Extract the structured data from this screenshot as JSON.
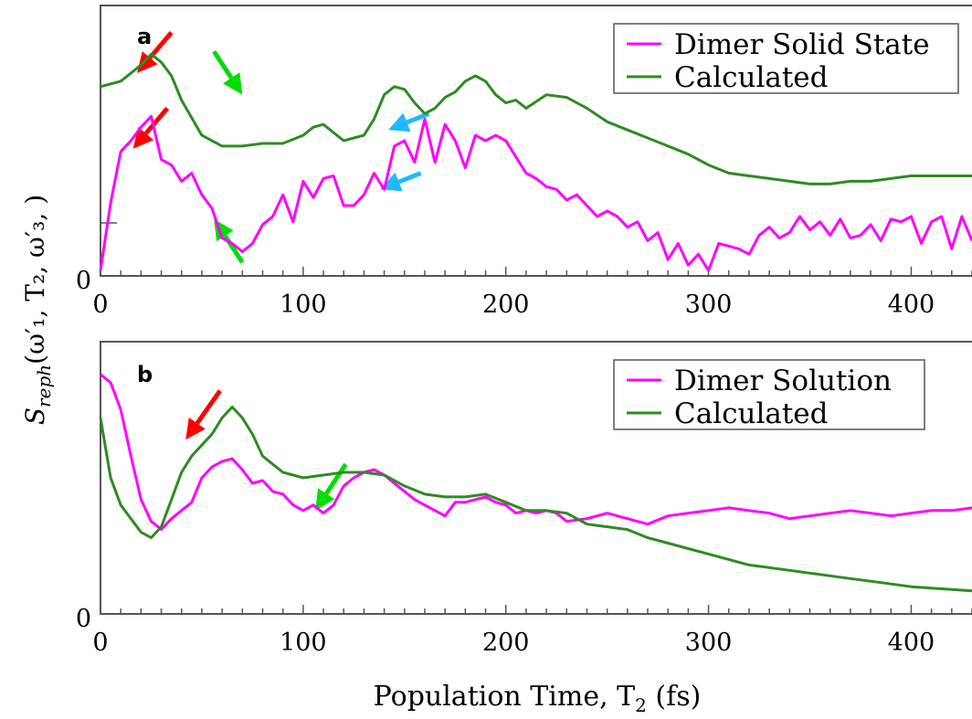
{
  "chart_data": [
    {
      "type": "line",
      "panel_label": "a",
      "xlabel": "Population Time, T",
      "xlabel_sub": "2",
      "xlabel_suffix": " (fs)",
      "ylabel": "S",
      "ylabel_sub": "reph",
      "ylabel_args": "(ω′₁, T₂, ω′₃, )",
      "xlim": [
        0,
        430
      ],
      "ylim": [
        0,
        1
      ],
      "xticks": [
        0,
        100,
        200,
        300,
        400
      ],
      "ytick_labels": [
        "0"
      ],
      "legend_position": "top-right",
      "series": [
        {
          "name": "Dimer Solid State",
          "color": "#ff00ff",
          "x": [
            0,
            5,
            10,
            15,
            20,
            25,
            30,
            35,
            40,
            45,
            50,
            55,
            60,
            65,
            70,
            75,
            80,
            85,
            90,
            95,
            100,
            105,
            110,
            115,
            120,
            125,
            130,
            135,
            140,
            145,
            150,
            155,
            160,
            165,
            170,
            175,
            180,
            185,
            190,
            195,
            200,
            205,
            210,
            215,
            220,
            225,
            230,
            235,
            240,
            245,
            250,
            255,
            260,
            265,
            270,
            275,
            280,
            285,
            290,
            295,
            300,
            305,
            310,
            315,
            320,
            325,
            330,
            335,
            340,
            345,
            350,
            355,
            360,
            365,
            370,
            375,
            380,
            385,
            390,
            395,
            400,
            405,
            410,
            415,
            420,
            425,
            430
          ],
          "values": [
            0.02,
            0.27,
            0.46,
            0.5,
            0.55,
            0.59,
            0.43,
            0.41,
            0.35,
            0.38,
            0.3,
            0.25,
            0.14,
            0.12,
            0.09,
            0.12,
            0.19,
            0.22,
            0.3,
            0.2,
            0.35,
            0.29,
            0.36,
            0.37,
            0.26,
            0.26,
            0.3,
            0.38,
            0.32,
            0.48,
            0.5,
            0.42,
            0.58,
            0.42,
            0.56,
            0.5,
            0.4,
            0.52,
            0.5,
            0.52,
            0.5,
            0.44,
            0.38,
            0.36,
            0.33,
            0.32,
            0.28,
            0.3,
            0.26,
            0.22,
            0.24,
            0.22,
            0.18,
            0.2,
            0.13,
            0.16,
            0.06,
            0.12,
            0.04,
            0.08,
            0.02,
            0.12,
            0.11,
            0.1,
            0.08,
            0.15,
            0.18,
            0.14,
            0.16,
            0.22,
            0.17,
            0.2,
            0.15,
            0.21,
            0.14,
            0.15,
            0.19,
            0.13,
            0.21,
            0.2,
            0.22,
            0.12,
            0.2,
            0.22,
            0.1,
            0.22,
            0.13
          ]
        },
        {
          "name": "Calculated",
          "color": "#2e8b22",
          "x": [
            0,
            10,
            20,
            25,
            30,
            35,
            40,
            50,
            60,
            70,
            80,
            90,
            100,
            105,
            110,
            120,
            125,
            130,
            135,
            140,
            145,
            150,
            155,
            160,
            165,
            170,
            175,
            180,
            185,
            190,
            195,
            200,
            205,
            210,
            220,
            230,
            240,
            250,
            260,
            270,
            280,
            290,
            300,
            310,
            320,
            330,
            340,
            350,
            360,
            370,
            380,
            390,
            400,
            410,
            420,
            430
          ],
          "values": [
            0.7,
            0.72,
            0.78,
            0.82,
            0.79,
            0.74,
            0.65,
            0.52,
            0.48,
            0.48,
            0.49,
            0.49,
            0.52,
            0.55,
            0.56,
            0.5,
            0.51,
            0.52,
            0.58,
            0.67,
            0.7,
            0.69,
            0.64,
            0.6,
            0.62,
            0.66,
            0.68,
            0.72,
            0.74,
            0.72,
            0.67,
            0.64,
            0.65,
            0.62,
            0.67,
            0.66,
            0.62,
            0.57,
            0.54,
            0.51,
            0.48,
            0.45,
            0.41,
            0.38,
            0.37,
            0.36,
            0.35,
            0.34,
            0.34,
            0.35,
            0.35,
            0.36,
            0.37,
            0.37,
            0.37,
            0.37
          ]
        }
      ],
      "annotations": [
        {
          "type": "arrow",
          "color": "#ff0000",
          "x_from": 35,
          "y_from": 0.9,
          "x_to": 18,
          "y_to": 0.75
        },
        {
          "type": "arrow",
          "color": "#ff0000",
          "x_from": 33,
          "y_from": 0.62,
          "x_to": 16,
          "y_to": 0.47
        },
        {
          "type": "arrow",
          "color": "#00dd00",
          "x_from": 56,
          "y_from": 0.83,
          "x_to": 70,
          "y_to": 0.67
        },
        {
          "type": "arrow",
          "color": "#00dd00",
          "x_from": 70,
          "y_from": 0.05,
          "x_to": 56,
          "y_to": 0.21
        },
        {
          "type": "arrow",
          "color": "#22b8ff",
          "x_from": 162,
          "y_from": 0.6,
          "x_to": 142,
          "y_to": 0.54
        },
        {
          "type": "arrow",
          "color": "#22b8ff",
          "x_from": 158,
          "y_from": 0.38,
          "x_to": 138,
          "y_to": 0.32
        }
      ]
    },
    {
      "type": "line",
      "panel_label": "b",
      "xlabel": "Population Time, T",
      "xlabel_sub": "2",
      "xlabel_suffix": " (fs)",
      "xlim": [
        0,
        430
      ],
      "ylim": [
        0,
        1
      ],
      "xticks": [
        0,
        100,
        200,
        300,
        400
      ],
      "ytick_labels": [
        "0"
      ],
      "legend_position": "top-right",
      "series": [
        {
          "name": "Dimer Solution",
          "color": "#ff00ff",
          "x": [
            0,
            5,
            10,
            15,
            20,
            25,
            30,
            35,
            40,
            45,
            50,
            55,
            60,
            65,
            70,
            75,
            80,
            85,
            90,
            95,
            100,
            105,
            110,
            115,
            120,
            125,
            130,
            135,
            140,
            145,
            150,
            155,
            160,
            165,
            170,
            175,
            180,
            185,
            190,
            195,
            200,
            205,
            210,
            215,
            220,
            225,
            230,
            240,
            250,
            260,
            270,
            280,
            290,
            300,
            310,
            320,
            330,
            340,
            350,
            360,
            370,
            380,
            390,
            400,
            410,
            420,
            430
          ],
          "values": [
            0.88,
            0.85,
            0.75,
            0.58,
            0.42,
            0.34,
            0.31,
            0.35,
            0.38,
            0.41,
            0.5,
            0.54,
            0.56,
            0.57,
            0.53,
            0.48,
            0.49,
            0.45,
            0.44,
            0.4,
            0.38,
            0.4,
            0.37,
            0.4,
            0.47,
            0.5,
            0.52,
            0.53,
            0.51,
            0.48,
            0.45,
            0.42,
            0.4,
            0.38,
            0.36,
            0.41,
            0.41,
            0.42,
            0.43,
            0.41,
            0.4,
            0.37,
            0.38,
            0.37,
            0.38,
            0.37,
            0.34,
            0.35,
            0.37,
            0.35,
            0.33,
            0.36,
            0.37,
            0.38,
            0.39,
            0.38,
            0.37,
            0.35,
            0.36,
            0.37,
            0.38,
            0.37,
            0.36,
            0.37,
            0.38,
            0.38,
            0.39
          ]
        },
        {
          "name": "Calculated",
          "color": "#2e8b22",
          "x": [
            0,
            5,
            10,
            15,
            20,
            25,
            30,
            35,
            40,
            45,
            50,
            55,
            60,
            65,
            70,
            75,
            80,
            90,
            100,
            110,
            120,
            130,
            140,
            150,
            160,
            170,
            180,
            190,
            200,
            210,
            220,
            230,
            240,
            250,
            260,
            270,
            280,
            290,
            300,
            310,
            320,
            330,
            340,
            350,
            360,
            370,
            380,
            390,
            400,
            410,
            420,
            430
          ],
          "values": [
            0.72,
            0.5,
            0.4,
            0.35,
            0.3,
            0.28,
            0.32,
            0.42,
            0.52,
            0.58,
            0.62,
            0.66,
            0.72,
            0.76,
            0.72,
            0.66,
            0.58,
            0.52,
            0.5,
            0.51,
            0.52,
            0.52,
            0.51,
            0.47,
            0.44,
            0.43,
            0.43,
            0.44,
            0.41,
            0.38,
            0.38,
            0.37,
            0.33,
            0.32,
            0.31,
            0.28,
            0.26,
            0.24,
            0.22,
            0.2,
            0.18,
            0.17,
            0.16,
            0.15,
            0.14,
            0.13,
            0.12,
            0.11,
            0.1,
            0.095,
            0.09,
            0.085
          ]
        }
      ],
      "annotations": [
        {
          "type": "arrow",
          "color": "#ff0000",
          "x_from": 59,
          "y_from": 0.82,
          "x_to": 42,
          "y_to": 0.64
        },
        {
          "type": "arrow",
          "color": "#00dd00",
          "x_from": 121,
          "y_from": 0.55,
          "x_to": 106,
          "y_to": 0.38
        }
      ]
    }
  ]
}
